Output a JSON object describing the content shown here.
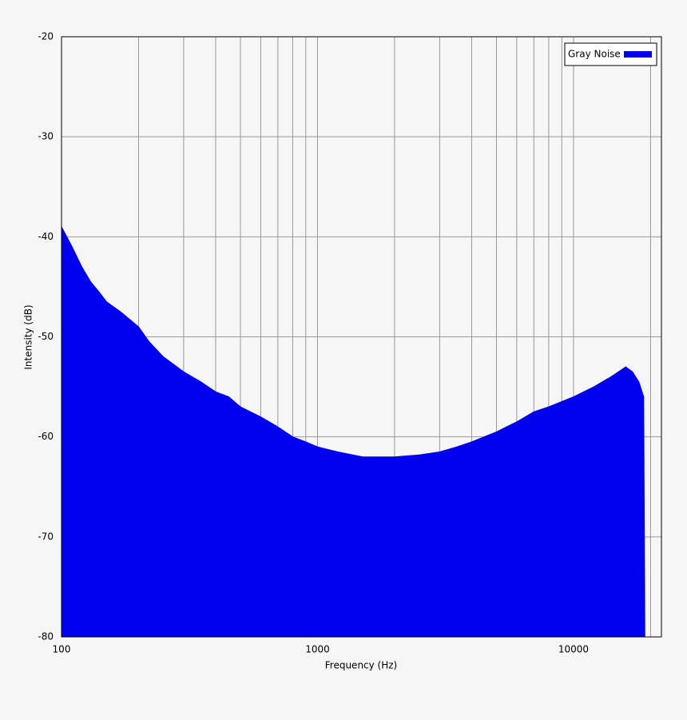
{
  "chart_data": {
    "type": "area",
    "x_label": "Frequency (Hz)",
    "y_label": "Intensity (dB)",
    "log_x": true,
    "xlim": [
      100,
      22050
    ],
    "ylim": [
      -80,
      -20
    ],
    "xticks": [
      100,
      1000,
      10000
    ],
    "xgrid": [
      200,
      300,
      400,
      500,
      600,
      700,
      800,
      900,
      2000,
      3000,
      4000,
      5000,
      6000,
      7000,
      8000,
      9000,
      20000
    ],
    "yticks": [
      -80,
      -70,
      -60,
      -50,
      -40,
      -30,
      -20
    ],
    "grid": true,
    "legend": "top-right",
    "series": [
      {
        "name": "Gray Noise",
        "color": "#0000ee",
        "x": [
          100,
          110,
          120,
          130,
          140,
          150,
          170,
          200,
          220,
          250,
          300,
          350,
          400,
          450,
          500,
          600,
          700,
          800,
          900,
          1000,
          1200,
          1500,
          2000,
          2500,
          3000,
          3500,
          4000,
          5000,
          6000,
          7000,
          8000,
          10000,
          12000,
          14000,
          16000,
          17000,
          18000,
          18800,
          19000
        ],
        "values": [
          -39,
          -41,
          -43,
          -44.5,
          -45.5,
          -46.5,
          -47.5,
          -49,
          -50.5,
          -52,
          -53.5,
          -54.5,
          -55.5,
          -56,
          -57,
          -58,
          -59,
          -60,
          -60.5,
          -61,
          -61.5,
          -62,
          -62,
          -61.8,
          -61.5,
          -61,
          -60.5,
          -59.5,
          -58.5,
          -57.5,
          -57,
          -56,
          -55,
          -54,
          -53,
          -53.5,
          -54.5,
          -56,
          -80
        ]
      }
    ]
  }
}
